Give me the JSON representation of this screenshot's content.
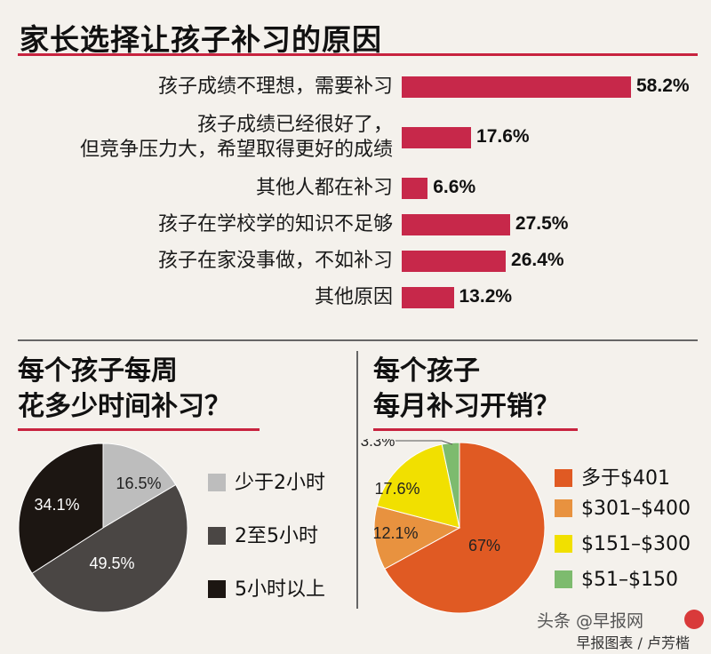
{
  "top_title": "家长选择让孩子补习的原因",
  "chart_data": [
    {
      "type": "bar",
      "title": "家长选择让孩子补习的原因",
      "orientation": "horizontal",
      "categories": [
        "孩子成绩不理想，需要补习",
        "孩子成绩已经很好了，\n但竞争压力大，希望取得更好的成绩",
        "其他人都在补习",
        "孩子在学校学的知识不足够",
        "孩子在家没事做，不如补习",
        "其他原因"
      ],
      "values": [
        58.2,
        17.6,
        6.6,
        27.5,
        26.4,
        13.2
      ],
      "value_labels": [
        "58.2%",
        "17.6%",
        "6.6%",
        "27.5%",
        "26.4%",
        "13.2%"
      ],
      "unit": "%",
      "color": "#c7284a",
      "xlim": [
        0,
        60
      ]
    },
    {
      "type": "pie",
      "title": "每个孩子每周\n花多少时间补习？",
      "labels": [
        "少于2小时",
        "2至5小时",
        "5小时以上"
      ],
      "values": [
        16.5,
        49.5,
        34.1
      ],
      "value_labels": [
        "16.5%",
        "49.5%",
        "34.1%"
      ],
      "colors": [
        "#bdbdbd",
        "#4a4644",
        "#1c1612"
      ],
      "legend_position": "right"
    },
    {
      "type": "pie",
      "title": "每个孩子\n每月补习开销？",
      "labels": [
        "多于$401",
        "$301–$400",
        "$151–$300",
        "$51–$150"
      ],
      "values": [
        67,
        12.1,
        17.6,
        3.3
      ],
      "value_labels": [
        "67%",
        "12.1%",
        "17.6%",
        "3.3%"
      ],
      "colors": [
        "#e05a23",
        "#e8923f",
        "#f1e000",
        "#7dbb6e"
      ],
      "legend_position": "right"
    }
  ],
  "watermark": "头条 @早报网",
  "footer": "早报图表 / 卢芳楷"
}
